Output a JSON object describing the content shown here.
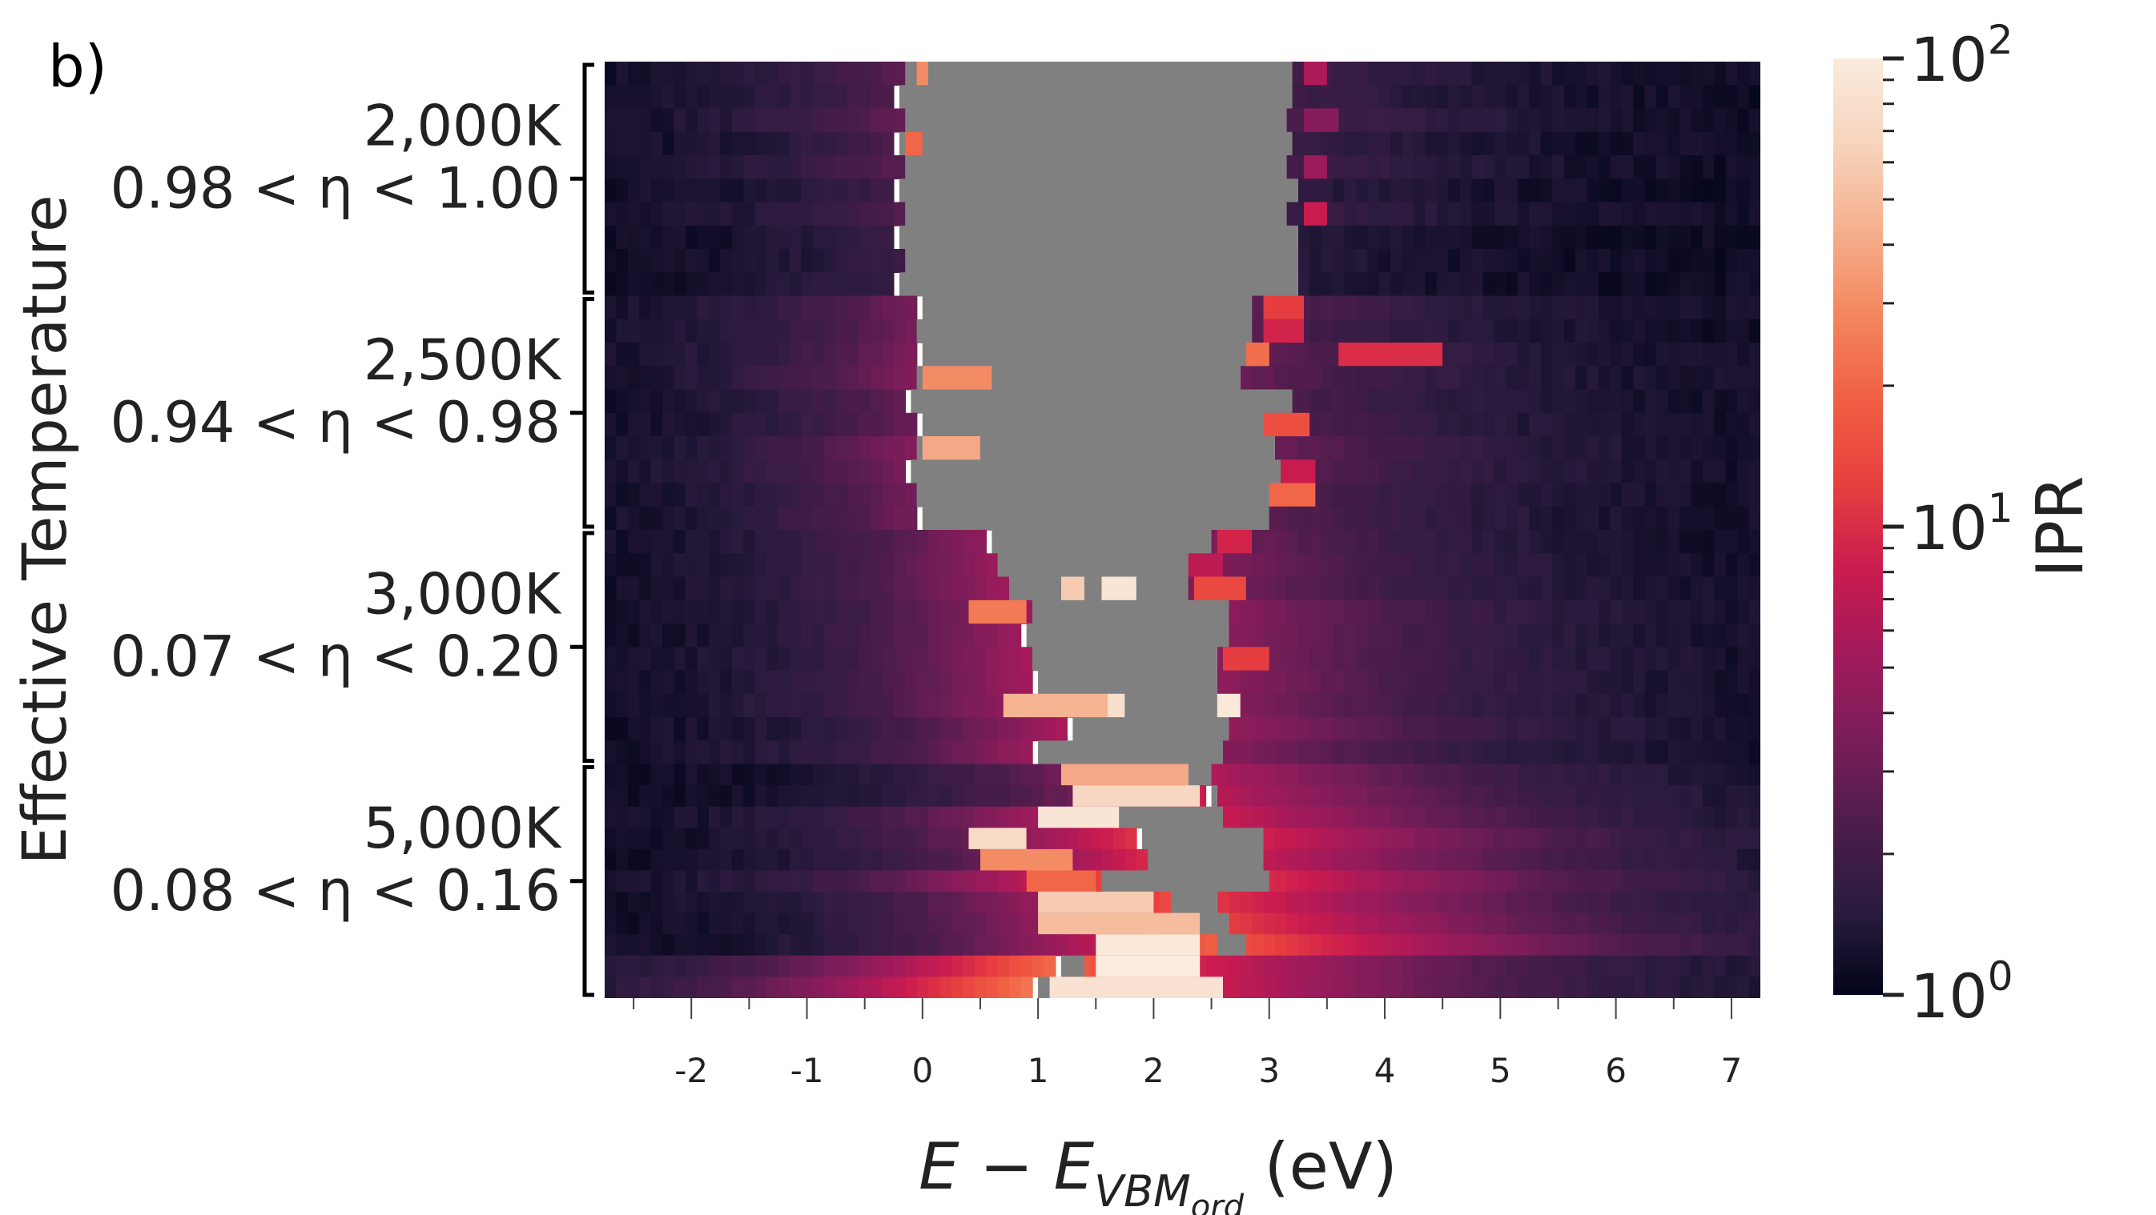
{
  "panel_label": "b)",
  "colors": {
    "gap": "#808080",
    "background": "#ffffff",
    "colormap": "rocket",
    "colormap_stops": [
      "#03051a",
      "#2a1b3e",
      "#4c1d4b",
      "#7a1d59",
      "#a11a5b",
      "#cb1b4f",
      "#e83f3f",
      "#f06043",
      "#f3875e",
      "#f5b08e",
      "#f7d4bd",
      "#faebdd"
    ]
  },
  "chart_data": {
    "type": "heatmap",
    "xlabel": "E − E_VBM_ord (eV)",
    "xlabel_parts": {
      "main": "E − E",
      "sub": "VBM",
      "subsub": "ord",
      "unit": " (eV)"
    },
    "ylabel": "Effective Temperature",
    "xlim": [
      -2.75,
      7.25
    ],
    "x_ticks": [
      {
        "value": -2,
        "label": "-2"
      },
      {
        "value": -1,
        "label": "-1"
      },
      {
        "value": 0,
        "label": "0"
      },
      {
        "value": 1,
        "label": "1"
      },
      {
        "value": 2,
        "label": "2"
      },
      {
        "value": 3,
        "label": "3"
      },
      {
        "value": 4,
        "label": "4"
      },
      {
        "value": 5,
        "label": "5"
      },
      {
        "value": 6,
        "label": "6"
      },
      {
        "value": 7,
        "label": "7"
      }
    ],
    "groups": [
      {
        "temperature": "2,000K",
        "eta": "0.98 < η < 1.00",
        "gap_left": [
          -0.15,
          -0.2,
          -0.15,
          -0.2,
          -0.15,
          -0.2,
          -0.15,
          -0.2,
          -0.15,
          -0.2
        ],
        "gap_right": [
          3.2,
          3.2,
          3.15,
          3.2,
          3.15,
          3.25,
          3.15,
          3.25,
          3.25,
          3.25
        ],
        "base_ipr": [
          1.6,
          1.5,
          1.8,
          1.4,
          1.6,
          1.2,
          1.5,
          1.1,
          1.1,
          1.1
        ],
        "spots": [
          {
            "row": 0,
            "x": -0.05,
            "w": 0.1,
            "ipr": 30
          },
          {
            "row": 0,
            "x": 3.3,
            "w": 0.2,
            "ipr": 6
          },
          {
            "row": 2,
            "x": 3.3,
            "w": 0.3,
            "ipr": 4
          },
          {
            "row": 3,
            "x": -0.15,
            "w": 0.15,
            "ipr": 20
          },
          {
            "row": 4,
            "x": 3.3,
            "w": 0.2,
            "ipr": 5
          },
          {
            "row": 6,
            "x": 3.3,
            "w": 0.2,
            "ipr": 8
          }
        ]
      },
      {
        "temperature": "2,500K",
        "eta": "0.94 < η < 0.98",
        "gap_left": [
          0.0,
          -0.05,
          0.0,
          -0.05,
          -0.1,
          0.0,
          -0.05,
          -0.1,
          -0.05,
          0.0
        ],
        "gap_right": [
          2.85,
          2.85,
          2.95,
          2.75,
          3.2,
          3.2,
          3.05,
          3.1,
          3.05,
          3.0
        ],
        "base_ipr": [
          2.2,
          2.0,
          2.3,
          2.4,
          1.8,
          1.9,
          2.4,
          2.2,
          2.0,
          2.1
        ],
        "spots": [
          {
            "row": 0,
            "x": 2.95,
            "w": 0.35,
            "ipr": 12
          },
          {
            "row": 1,
            "x": 2.95,
            "w": 0.35,
            "ipr": 9
          },
          {
            "row": 2,
            "x": 2.8,
            "w": 0.2,
            "ipr": 22
          },
          {
            "row": 2,
            "x": 3.6,
            "w": 0.9,
            "ipr": 10
          },
          {
            "row": 3,
            "x": 0.0,
            "w": 0.6,
            "ipr": 30
          },
          {
            "row": 5,
            "x": 2.95,
            "w": 0.4,
            "ipr": 15
          },
          {
            "row": 6,
            "x": 0.0,
            "w": 0.5,
            "ipr": 40
          },
          {
            "row": 7,
            "x": 3.1,
            "w": 0.3,
            "ipr": 8
          },
          {
            "row": 8,
            "x": 3.0,
            "w": 0.4,
            "ipr": 20
          }
        ]
      },
      {
        "temperature": "3,000K",
        "eta": "0.07 < η < 0.20",
        "gap_left": [
          0.6,
          0.65,
          0.75,
          0.95,
          0.9,
          0.95,
          1.0,
          0.95,
          1.3,
          1.0
        ],
        "gap_right": [
          2.5,
          2.5,
          2.3,
          2.65,
          2.65,
          2.55,
          2.55,
          2.6,
          2.65,
          2.6
        ],
        "base_ipr": [
          2.8,
          3.0,
          3.2,
          3.4,
          3.3,
          3.5,
          3.6,
          3.4,
          3.8,
          3.2
        ],
        "spots": [
          {
            "row": 0,
            "x": 2.55,
            "w": 0.3,
            "ipr": 9
          },
          {
            "row": 1,
            "x": 2.3,
            "w": 0.3,
            "ipr": 7
          },
          {
            "row": 2,
            "x": 1.2,
            "w": 0.2,
            "ipr": 60
          },
          {
            "row": 2,
            "x": 1.55,
            "w": 0.3,
            "ipr": 90
          },
          {
            "row": 2,
            "x": 2.35,
            "w": 0.45,
            "ipr": 14
          },
          {
            "row": 3,
            "x": 0.4,
            "w": 0.5,
            "ipr": 25
          },
          {
            "row": 5,
            "x": 2.6,
            "w": 0.4,
            "ipr": 12
          },
          {
            "row": 7,
            "x": 0.7,
            "w": 0.9,
            "ipr": 45
          },
          {
            "row": 7,
            "x": 1.6,
            "w": 0.15,
            "ipr": 80
          },
          {
            "row": 7,
            "x": 2.55,
            "w": 0.2,
            "ipr": 95
          }
        ]
      },
      {
        "temperature": "5,000K",
        "eta": "0.08 < η < 0.16",
        "gap_left": [
          2.3,
          2.5,
          1.7,
          1.9,
          1.95,
          1.55,
          2.15,
          2.35,
          2.55,
          1.2,
          1.0
        ],
        "gap_right": [
          2.5,
          2.55,
          2.6,
          2.95,
          2.95,
          3.0,
          2.55,
          2.65,
          2.8,
          1.4,
          1.2
        ],
        "base_ipr": [
          5.0,
          5.5,
          6.5,
          7.0,
          6.0,
          8.0,
          9.0,
          10.0,
          12.0,
          14.0,
          16.0
        ],
        "spots": [
          {
            "row": 0,
            "x": 1.2,
            "w": 1.1,
            "ipr": 40
          },
          {
            "row": 1,
            "x": 1.3,
            "w": 1.1,
            "ipr": 70
          },
          {
            "row": 2,
            "x": 1.0,
            "w": 0.7,
            "ipr": 90
          },
          {
            "row": 3,
            "x": 0.4,
            "w": 0.5,
            "ipr": 75
          },
          {
            "row": 4,
            "x": 0.5,
            "w": 0.8,
            "ipr": 30
          },
          {
            "row": 5,
            "x": 0.9,
            "w": 0.6,
            "ipr": 20
          },
          {
            "row": 6,
            "x": 1.0,
            "w": 1.0,
            "ipr": 60
          },
          {
            "row": 7,
            "x": 1.0,
            "w": 1.4,
            "ipr": 50
          },
          {
            "row": 8,
            "x": 1.5,
            "w": 0.9,
            "ipr": 95
          },
          {
            "row": 9,
            "x": 1.5,
            "w": 0.9,
            "ipr": 100
          },
          {
            "row": 10,
            "x": 1.1,
            "w": 1.5,
            "ipr": 85
          }
        ]
      }
    ],
    "colorbar": {
      "label": "IPR",
      "scale": "log",
      "range": [
        1,
        100
      ],
      "ticks": [
        {
          "value": 1,
          "base": "10",
          "exp": "0"
        },
        {
          "value": 10,
          "base": "10",
          "exp": "1"
        },
        {
          "value": 100,
          "base": "10",
          "exp": "2"
        }
      ]
    }
  }
}
